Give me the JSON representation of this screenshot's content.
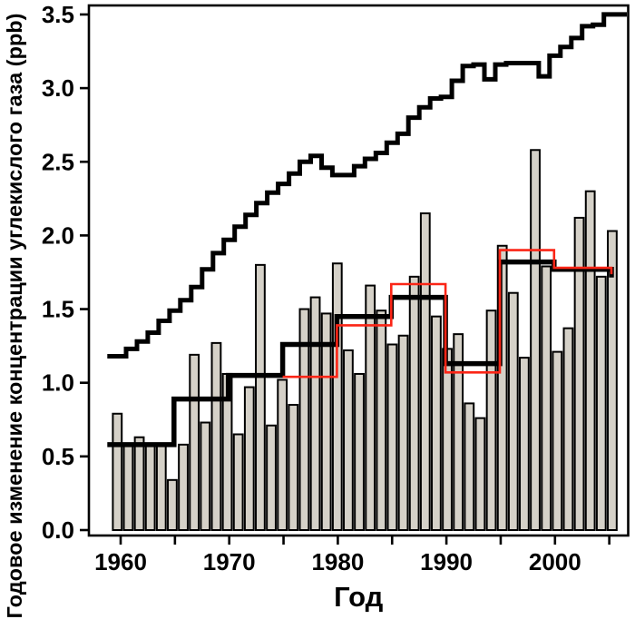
{
  "chart_data": {
    "type": "bar",
    "title": "",
    "xlabel": "Год",
    "ylabel": "Годовое изменение концентрации углекислого газа (ppb)",
    "xlim": [
      1957,
      2006.5
    ],
    "ylim": [
      0,
      3.6
    ],
    "grid": false,
    "legend": "none",
    "x_ticks": [
      1960,
      1965,
      1970,
      1975,
      1980,
      1985,
      1990,
      1995,
      2000,
      2005
    ],
    "x_labeled_ticks": [
      1960,
      1970,
      1980,
      1990,
      2000
    ],
    "y_ticks": [
      0,
      0.5,
      1,
      1.5,
      2,
      2.5,
      3,
      3.5
    ],
    "y_tick_labels": [
      "0.0",
      "0.5",
      "1.0",
      "1.5",
      "2.0",
      "2.5",
      "3.0",
      "3.5"
    ],
    "years": [
      1960,
      1961,
      1962,
      1963,
      1964,
      1965,
      1966,
      1967,
      1968,
      1969,
      1970,
      1971,
      1972,
      1973,
      1974,
      1975,
      1976,
      1977,
      1978,
      1979,
      1980,
      1981,
      1982,
      1983,
      1984,
      1985,
      1986,
      1987,
      1988,
      1989,
      1990,
      1991,
      1992,
      1993,
      1994,
      1995,
      1996,
      1997,
      1998,
      1999,
      2000,
      2001,
      2002,
      2003,
      2004,
      2005
    ],
    "series": [
      {
        "name": "annual-change-bars",
        "type": "bar",
        "color": "#d5d1c8",
        "stroke": "#000000",
        "values": [
          0.79,
          0.58,
          0.63,
          0.58,
          0.58,
          0.34,
          0.58,
          1.19,
          0.73,
          1.27,
          1.06,
          0.65,
          0.97,
          1.8,
          0.71,
          1.02,
          0.85,
          1.5,
          1.58,
          1.47,
          1.81,
          1.22,
          1.06,
          1.66,
          1.49,
          1.26,
          1.32,
          1.72,
          2.15,
          1.45,
          1.23,
          1.33,
          0.86,
          0.76,
          1.49,
          1.93,
          1.61,
          1.17,
          2.58,
          1.79,
          1.21,
          1.37,
          2.12,
          2.3,
          1.72,
          2.03
        ]
      },
      {
        "name": "five-year-mean-black-step",
        "type": "step",
        "color": "#000000",
        "segments": [
          {
            "start": 1958.8,
            "end": 1965,
            "value": 0.58
          },
          {
            "start": 1965,
            "end": 1970,
            "value": 0.89
          },
          {
            "start": 1970,
            "end": 1975,
            "value": 1.05
          },
          {
            "start": 1975,
            "end": 1980,
            "value": 1.26
          },
          {
            "start": 1980,
            "end": 1985,
            "value": 1.45
          },
          {
            "start": 1985,
            "end": 1990,
            "value": 1.58
          },
          {
            "start": 1990,
            "end": 1995,
            "value": 1.13
          },
          {
            "start": 1995,
            "end": 2000,
            "value": 1.82
          },
          {
            "start": 2000,
            "end": 2005.2,
            "value": 1.77
          }
        ]
      },
      {
        "name": "five-year-mean-red-step",
        "type": "step",
        "color": "#fb2516",
        "segments": [
          {
            "start": 1975,
            "end": 1980,
            "value": 1.04
          },
          {
            "start": 1980,
            "end": 1985,
            "value": 1.39
          },
          {
            "start": 1985,
            "end": 1990,
            "value": 1.67
          },
          {
            "start": 1990,
            "end": 1995,
            "value": 1.07
          },
          {
            "start": 1995,
            "end": 2000,
            "value": 1.9
          },
          {
            "start": 2000,
            "end": 2005.2,
            "value": 1.78
          }
        ]
      },
      {
        "name": "upper-step-curve",
        "type": "step-annual",
        "color": "#000000",
        "values": [
          1.18,
          1.23,
          1.28,
          1.34,
          1.42,
          1.49,
          1.56,
          1.65,
          1.77,
          1.88,
          1.97,
          2.06,
          2.14,
          2.22,
          2.29,
          2.35,
          2.42,
          2.5,
          2.54,
          2.46,
          2.41,
          2.41,
          2.47,
          2.52,
          2.56,
          2.63,
          2.69,
          2.8,
          2.87,
          2.93,
          2.94,
          3.05,
          3.15,
          3.16,
          3.06,
          3.16,
          3.17,
          3.17,
          3.17,
          3.08,
          3.22,
          3.28,
          3.34,
          3.42,
          3.43,
          3.5
        ]
      }
    ]
  },
  "colors": {
    "bar_fill": "#d5d1c8",
    "bar_stroke": "#000000",
    "black_line": "#000000",
    "red_line": "#fb2516",
    "background": "#ffffff"
  }
}
